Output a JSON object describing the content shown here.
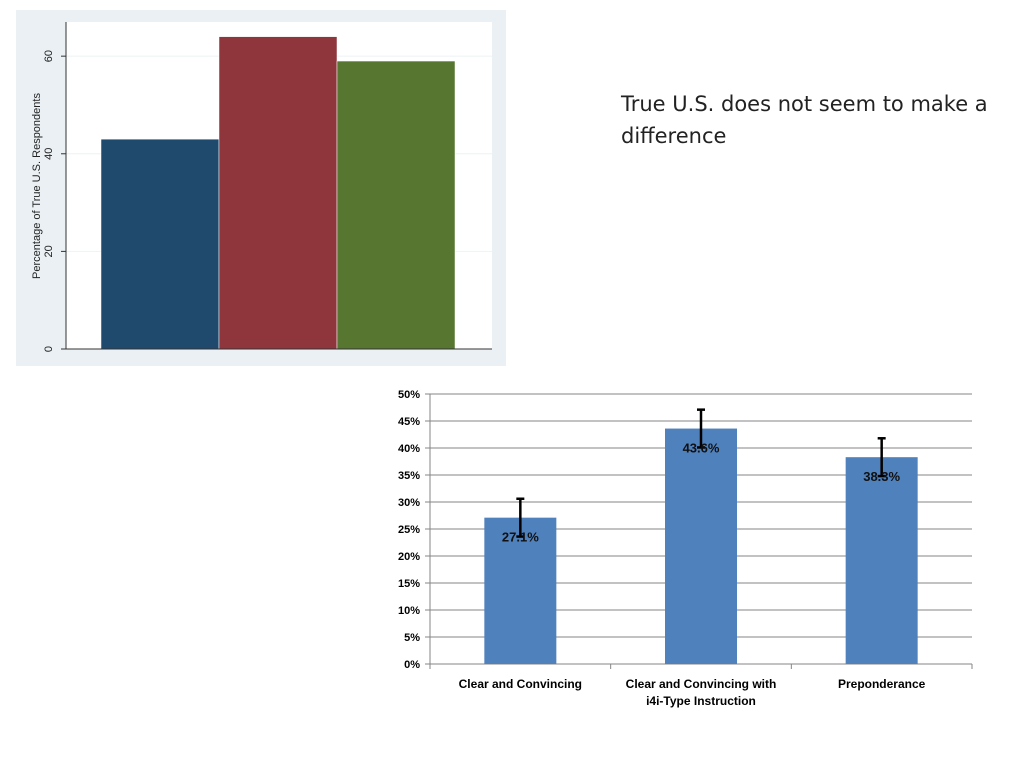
{
  "caption": "True U.S. does not seem to make a difference",
  "chart_data": [
    {
      "type": "bar",
      "ylabel": "Percentage of True U.S. Respondents",
      "ylim": [
        0,
        67
      ],
      "yticks": [
        0,
        20,
        40,
        60
      ],
      "grid": true,
      "series": [
        {
          "color": "#1f4a6e",
          "values": [
            43
          ]
        },
        {
          "color": "#8e363c",
          "values": [
            64
          ]
        },
        {
          "color": "#577630",
          "values": [
            59
          ]
        }
      ]
    },
    {
      "type": "bar",
      "categories": [
        "Clear and Convincing",
        "Clear and Convincing with i4i-Type Instruction",
        "Preponderance"
      ],
      "category_lines": [
        [
          "Clear and Convincing"
        ],
        [
          "Clear and Convincing with",
          "i4i-Type Instruction"
        ],
        [
          "Preponderance"
        ]
      ],
      "values": [
        27.1,
        43.6,
        38.3
      ],
      "data_labels": [
        "27.1%",
        "43.6%",
        "38.3%"
      ],
      "error_bars": [
        [
          23.6,
          30.6
        ],
        [
          40.1,
          47.1
        ],
        [
          34.8,
          41.8
        ]
      ],
      "ylim": [
        0,
        50
      ],
      "yticks": [
        0,
        5,
        10,
        15,
        20,
        25,
        30,
        35,
        40,
        45,
        50
      ],
      "ytick_labels": [
        "0%",
        "5%",
        "10%",
        "15%",
        "20%",
        "25%",
        "30%",
        "35%",
        "40%",
        "45%",
        "50%"
      ],
      "grid": true,
      "bar_color": "#4f81bd"
    }
  ]
}
